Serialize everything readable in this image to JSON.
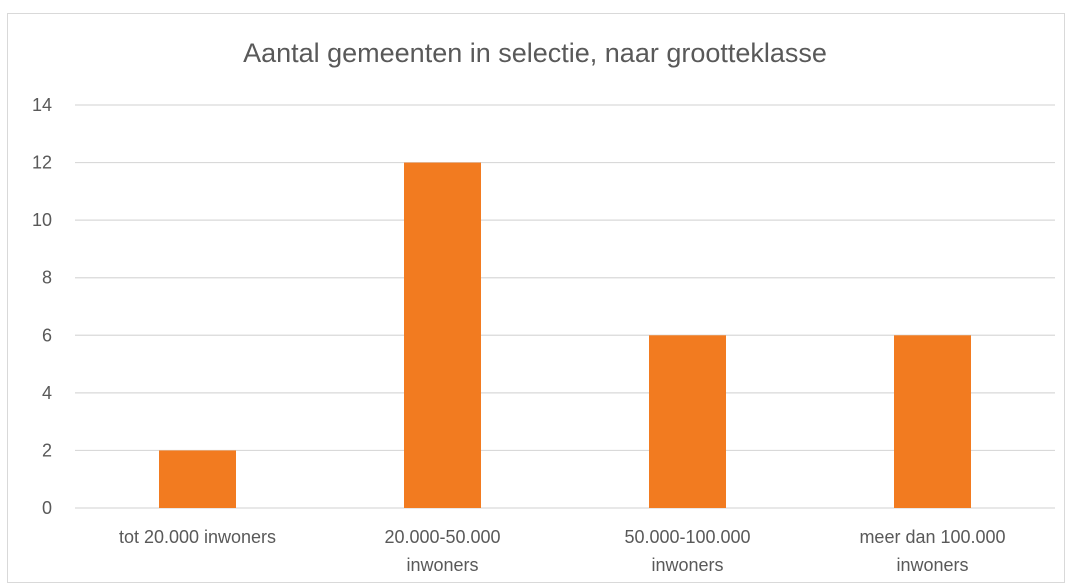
{
  "chart_data": {
    "type": "bar",
    "title": "Aantal gemeenten in selectie, naar grootteklasse",
    "categories": [
      [
        "tot 20.000 inwoners"
      ],
      [
        "20.000-50.000",
        "inwoners"
      ],
      [
        "50.000-100.000",
        "inwoners"
      ],
      [
        "meer dan 100.000",
        "inwoners"
      ]
    ],
    "values": [
      2,
      12,
      6,
      6
    ],
    "ylim": [
      0,
      14
    ],
    "yticks": [
      0,
      2,
      4,
      6,
      8,
      10,
      12,
      14
    ],
    "grid": true,
    "bar_color": "#f27b20",
    "grid_color": "#d9d9d9"
  }
}
